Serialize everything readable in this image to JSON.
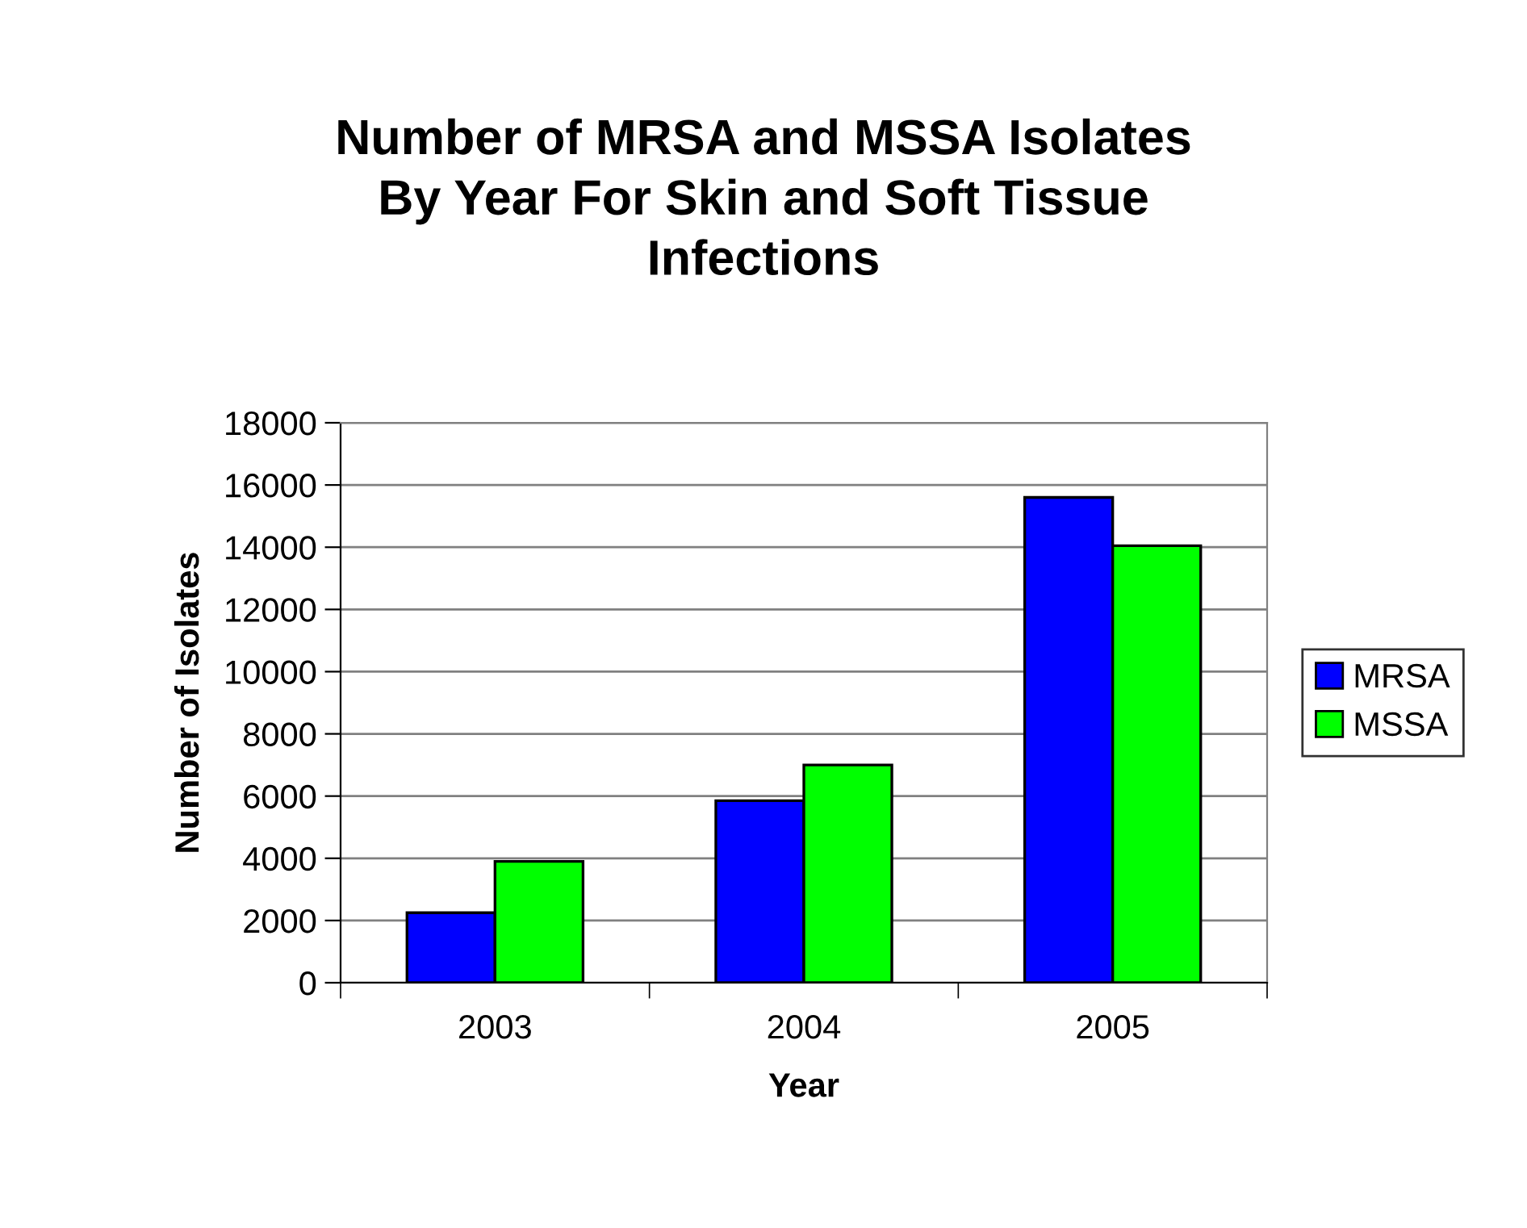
{
  "chart_data": {
    "type": "bar",
    "title": "Number of MRSA and MSSA Isolates\nBy Year For Skin and Soft Tissue\nInfections",
    "xlabel": "Year",
    "ylabel": "Number of Isolates",
    "categories": [
      "2003",
      "2004",
      "2005"
    ],
    "series": [
      {
        "name": "MRSA",
        "color": "#0000ff",
        "values": [
          2250,
          5850,
          15600
        ]
      },
      {
        "name": "MSSA",
        "color": "#00ff00",
        "values": [
          3900,
          7000,
          14050
        ]
      }
    ],
    "ylim": [
      0,
      18000
    ],
    "yticks": [
      0,
      2000,
      4000,
      6000,
      8000,
      10000,
      12000,
      14000,
      16000,
      18000
    ],
    "grid": "y",
    "legend": "right"
  }
}
